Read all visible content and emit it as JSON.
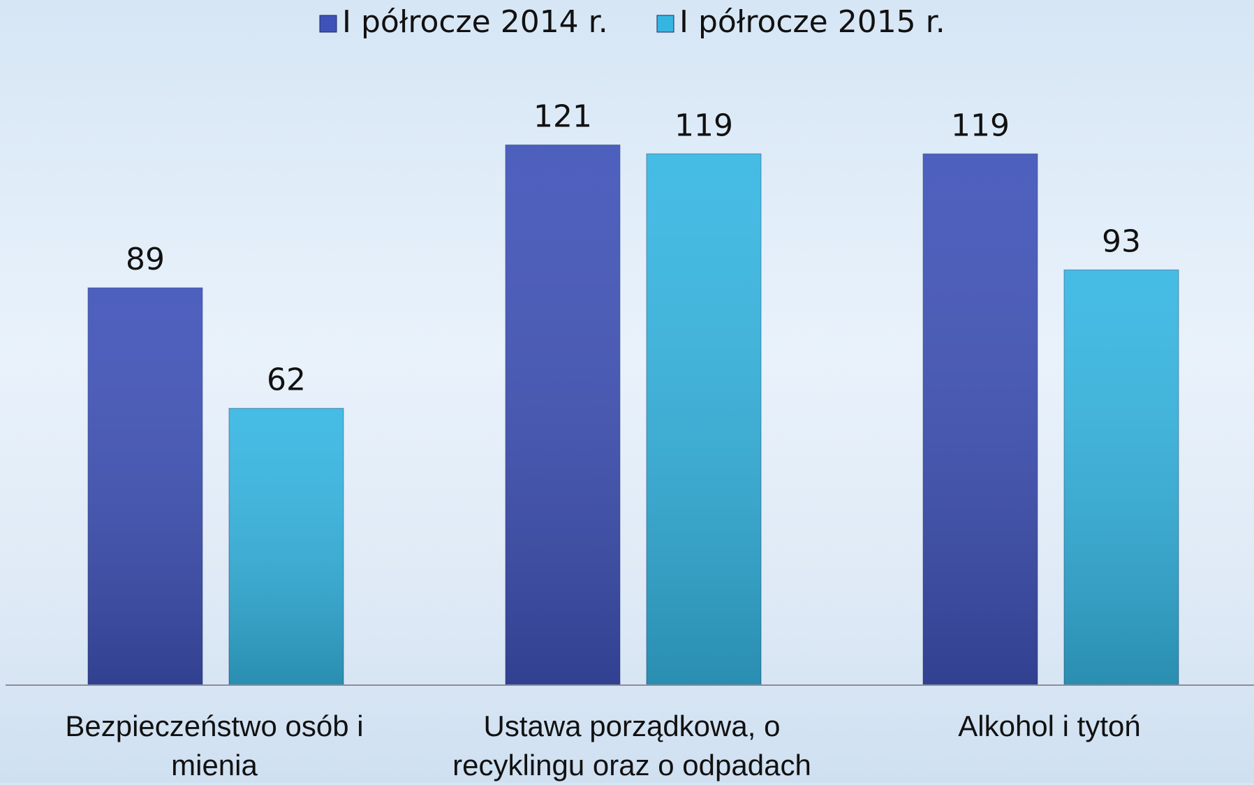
{
  "chart_data": {
    "type": "bar",
    "categories": [
      "Bezpieczeństwo osób i mienia",
      "Ustawa porządkowa, o recyklingu oraz o odpadach",
      "Alkohol i tytoń"
    ],
    "series": [
      {
        "name": "I półrocze 2014 r.",
        "color": "#3f52b8",
        "values": [
          89,
          121,
          119
        ]
      },
      {
        "name": "I półrocze 2015 r.",
        "color": "#35b6e2",
        "values": [
          62,
          119,
          93
        ]
      }
    ],
    "ylim": [
      0,
      140
    ],
    "legend": "top"
  }
}
